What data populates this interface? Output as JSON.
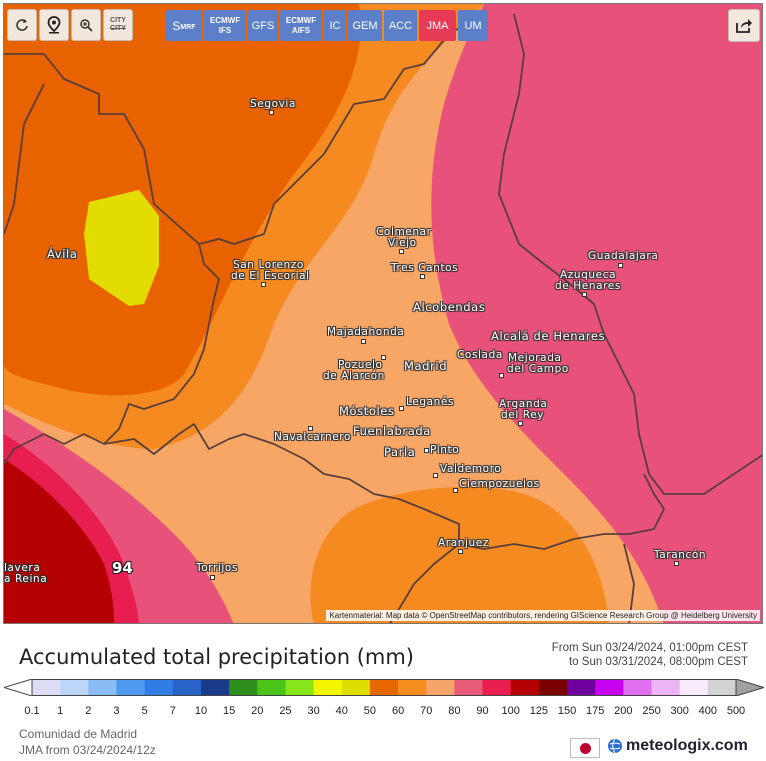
{
  "toolbar": {
    "refresh_icon": "refresh-icon",
    "location_icon": "location-pin-icon",
    "zoom_icon": "zoom-icon",
    "city_label_top": "CITY",
    "city_label_bottom": "CITY",
    "share_icon": "share-icon"
  },
  "models": [
    {
      "label": "S",
      "sub": "MRF",
      "active": false
    },
    {
      "label": "ECMWF",
      "sub": "IFS",
      "active": false
    },
    {
      "label": "GFS",
      "sub": "",
      "active": false
    },
    {
      "label": "ECMWF",
      "sub": "AIFS",
      "active": false
    },
    {
      "label": "IC",
      "sub": "",
      "active": false
    },
    {
      "label": "GEM",
      "sub": "",
      "active": false
    },
    {
      "label": "ACC",
      "sub": "",
      "active": false
    },
    {
      "label": "JMA",
      "sub": "",
      "active": true
    },
    {
      "label": "UM",
      "sub": "",
      "active": false
    }
  ],
  "map": {
    "max_value_label": "94",
    "attribution": "Kartenmaterial: Map data © OpenStreetMap contributors, rendering GIScience Research Group @ Heidelberg University",
    "cities": {
      "segovia": "Segovia",
      "avila": "Ávila",
      "colmenar_1": "Colmenar",
      "colmenar_2": "Viejo",
      "guadalajara": "Guadalajara",
      "sanlorenzo_1": "San Lorenzo",
      "sanlorenzo_2": "de El Escorial",
      "trescantos": "Tres Cantos",
      "azuqueca_1": "Azuqueca",
      "azuqueca_2": "de Henares",
      "alcobendas": "Alcobendas",
      "majadahonda": "Majadahonda",
      "alcala": "Alcalá de Henares",
      "pozuelo_1": "Pozuelo",
      "pozuelo_2": "de Alarcón",
      "madrid": "Madrid",
      "coslada": "Coslada",
      "mejorada_1": "Mejorada",
      "mejorada_2": "del Campo",
      "leganes": "Leganés",
      "mostoles": "Móstoles",
      "arganda_1": "Arganda",
      "arganda_2": "del Rey",
      "navalcarnero": "Navalcarnero",
      "fuenlabrada": "Fuenlabrada",
      "parla": "Parla",
      "pinto": "Pinto",
      "valdemoro": "Valdemoro",
      "ciempozuelos": "Ciempozuelos",
      "talavera_1": "lavera",
      "talavera_2": "a Reina",
      "torrijos": "Torrijos",
      "aranjuez": "Aranjuez",
      "tarancon": "Tarancón"
    }
  },
  "legend": {
    "title": "Accumulated total precipitation (mm)",
    "range_from": "From Sun 03/24/2024, 01:00pm CEST",
    "range_to": "to Sun 03/31/2024, 08:00pm CEST",
    "region": "Comunidad de Madrid",
    "run": "JMA from 03/24/2024/12z",
    "brand": "meteologix.com",
    "flag_icon": "japan-flag-icon",
    "ticks": [
      "0.1",
      "1",
      "2",
      "3",
      "5",
      "7",
      "10",
      "15",
      "20",
      "25",
      "30",
      "40",
      "50",
      "60",
      "70",
      "80",
      "90",
      "100",
      "125",
      "150",
      "175",
      "200",
      "250",
      "300",
      "400",
      "500"
    ],
    "colors": [
      "#dcdcf5",
      "#bcd6fa",
      "#8cbcf5",
      "#4f9af0",
      "#2f7ee8",
      "#2864c8",
      "#1a3a8a",
      "#2e8f1e",
      "#4ac418",
      "#86e61a",
      "#f5f500",
      "#dede00",
      "#e86800",
      "#f58c1e",
      "#f5a56a",
      "#e85a7a",
      "#e81e50",
      "#b40000",
      "#7a0000",
      "#6e009e",
      "#c800f0",
      "#e070f0",
      "#ebb4f5",
      "#f7ebfb",
      "#d2d2d2"
    ],
    "colors_note": ""
  }
}
